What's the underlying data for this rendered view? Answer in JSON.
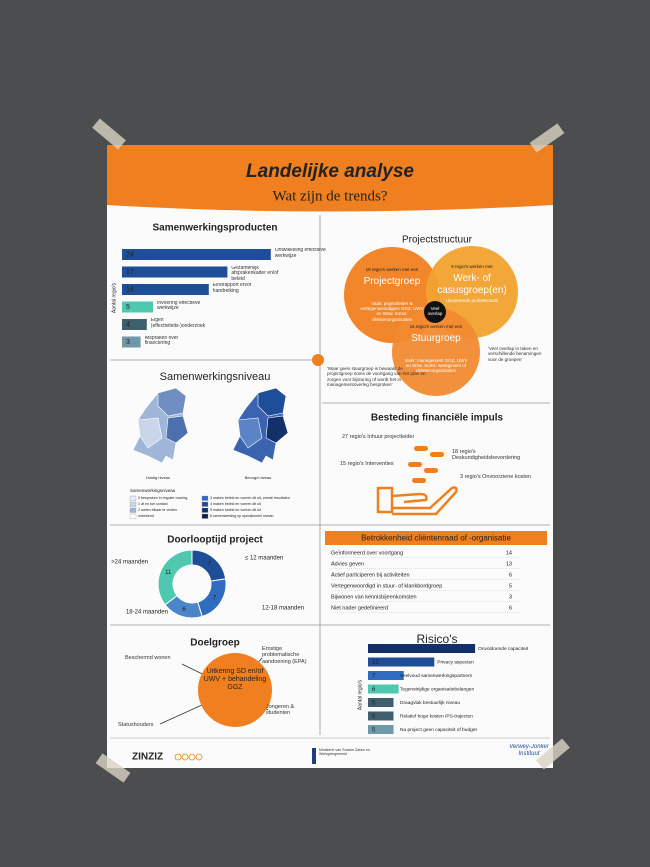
{
  "header": {
    "title": "Landelijke analyse",
    "subtitle": "Wat zijn de trends?"
  },
  "samenwerkingsproducten": {
    "title": "Samenwerkingsproducten",
    "axis_label": "Aantal regio's",
    "items": [
      {
        "value": 24,
        "label": "Ontwikkeling effectieve werkwijze",
        "color": "#1f4e99"
      },
      {
        "value": 17,
        "label": "Gezamenlijk afsprakenkader en/of beleid",
        "color": "#1f4e99"
      },
      {
        "value": 14,
        "label": "Eindrapport en/of handreiking",
        "color": "#1f4e99"
      },
      {
        "value": 5,
        "label": "Invoering effectieve werkwijze",
        "color": "#4ec9b0"
      },
      {
        "value": 4,
        "label": "Eigen (effectiviteits-)onderzoek",
        "color": "#3e5f6e"
      },
      {
        "value": 3,
        "label": "Afspraken over financiering",
        "color": "#6f98a8"
      }
    ]
  },
  "projectstructuur": {
    "title": "Projectstructuur",
    "circles": [
      {
        "count": "19 regio's werken met een",
        "name": "Projectgroep",
        "note": "Vaak: projectleider & vertegenwoordigers GGZ, UWV en Wsw. Soms: cliëntenorganisaties"
      },
      {
        "count": "9 regio's werken met",
        "name": "Werk- of casusgroep(en)",
        "note": "Uitvoerende professionals"
      },
      {
        "count": "16 regio's werken met een",
        "name": "Stuurgroep",
        "note": "Vaak: management GGZ, UWV en Wsw. Soms: werkgevers of cliëntenorganisaties"
      }
    ],
    "overlap": "Veel overlap",
    "quote_left": "'Waar geen stuurgroep is bewaakt de projectgroep soms de voortgang van het plan en zorgen voor bijsturing of wordt het in managementoverleg besproken'",
    "quote_right": "'Veel overlap in taken en verschillende benamingen voor de groepen'"
  },
  "samenwerkingsniveau": {
    "title": "Samenwerkingsniveau",
    "map_labels": [
      "Huidig niveau",
      "Beoogd niveau"
    ],
    "legend_title": "Samenwerkingsniveau",
    "legend": [
      "0 besproken in regulier overleg",
      "1 af en toe contact",
      "2 weten elkaar te vinden",
      "onbekend",
      "3 maken beleid en voeren dit uit, eerste resultaten",
      "4 maken beleid en voeren dit uit",
      "5 maken beleid en voeren dit uit",
      "6 samenwerking op operationeel niveau"
    ]
  },
  "besteding": {
    "title": "Besteding financiële impuls",
    "items": [
      "27 regio's Inhuur projectleider",
      "15 regio's Interventies",
      "18 regio's Deskundigheidsbevordering",
      "3 regio's Onvoorziene kosten"
    ]
  },
  "doorlooptijd": {
    "title": "Doorlooptijd project",
    "segments": [
      {
        "label": "≤ 12 maanden",
        "value": 7,
        "color": "#1f4e99"
      },
      {
        "label": "12-18 maanden",
        "value": 7,
        "color": "#2f6bbf"
      },
      {
        "label": "18-24 maanden",
        "value": 6,
        "color": "#4a86c8"
      },
      {
        "label": ">24 maanden",
        "value": 11,
        "color": "#4ec9b0"
      }
    ]
  },
  "clientenraad": {
    "title": "Betrokkenheid cliëntenraad of -organisatie",
    "rows": [
      {
        "label": "Geïnformeerd over voortgang",
        "value": 14
      },
      {
        "label": "Advies geven",
        "value": 13
      },
      {
        "label": "Actief participeren bij activiteiten",
        "value": 6
      },
      {
        "label": "Vertegenwoordigd in stuur- of klankbordgroep",
        "value": 5
      },
      {
        "label": "Bijwonen van kennisbijeenkomsten",
        "value": 3
      },
      {
        "label": "Niet nader gedefinieerd",
        "value": 6
      }
    ]
  },
  "doelgroep": {
    "title": "Doelgroep",
    "center": "Uitkering SD en/of UWV + behandeling GGZ",
    "groups": [
      "Beschermd wonen",
      "Ernstige problematische aandoening (EPA)",
      "Jongeren & studenten",
      "Statushouders"
    ]
  },
  "risicos": {
    "title": "Risico's",
    "axis_label": "Aantal regio's",
    "items": [
      {
        "value": 21,
        "label": "Onvoldoende capaciteit",
        "color": "#14306b"
      },
      {
        "value": 13,
        "label": "Privacy aspecten",
        "color": "#1f4e99"
      },
      {
        "value": 7,
        "label": "Veelvoud samenwerkingspartners",
        "color": "#2f6bbf"
      },
      {
        "value": 6,
        "label": "Tegenstrijdige organisatiebelangen",
        "color": "#4ec9b0"
      },
      {
        "value": 5,
        "label": "Draagvlak bestuurlijk niveau",
        "color": "#3e5f6e"
      },
      {
        "value": 5,
        "label": "Relatief hoge kosten IPS-trajecten",
        "color": "#3e5f6e"
      },
      {
        "value": 5,
        "label": "Na project geen capaciteit of budget",
        "color": "#6f98a8"
      }
    ]
  },
  "footer": {
    "logo_left": "ZINZIZ",
    "ministry": "Ministerie van Sociale Zaken en Werkgelegenheid",
    "logo_right": "Verwey-Jonker Instituut"
  }
}
